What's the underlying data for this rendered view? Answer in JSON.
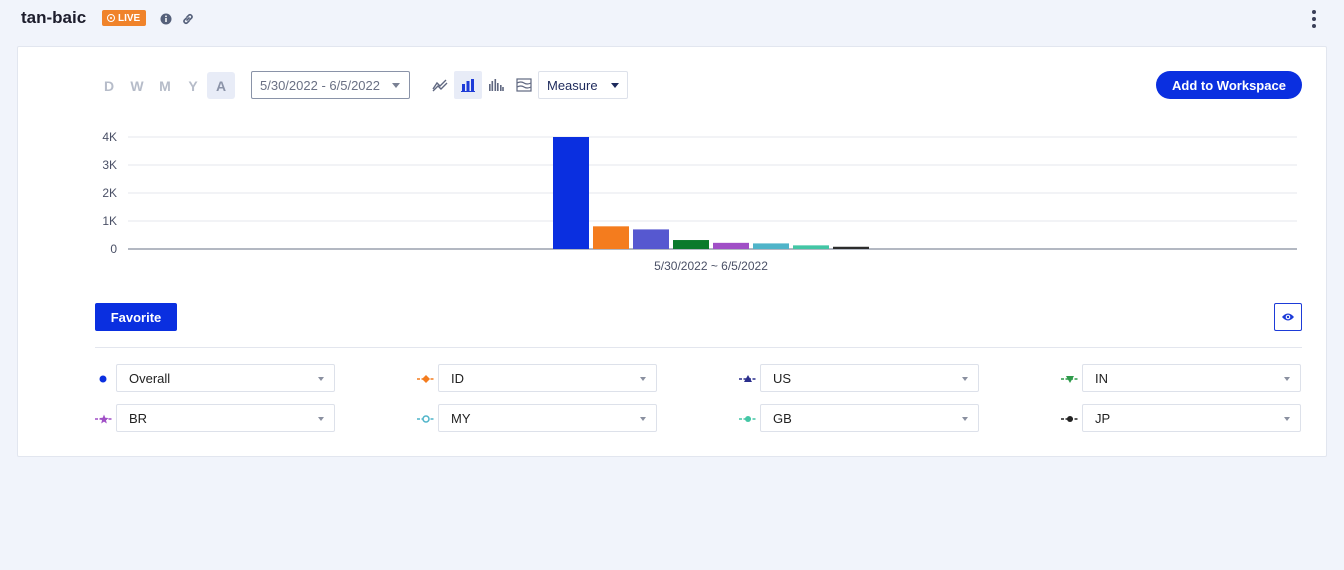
{
  "header": {
    "title": "tan-baic",
    "live_label": "LIVE"
  },
  "toolbar": {
    "periods": [
      "D",
      "W",
      "M",
      "Y",
      "A"
    ],
    "active_period": "A",
    "date_range": "5/30/2022 - 6/5/2022",
    "chart_types": [
      "trend-line-icon",
      "bar-chart-icon",
      "grouped-bar-icon",
      "stacked-area-icon"
    ],
    "active_chart_type": "bar-chart-icon",
    "measure_label": "Measure",
    "workspace_label": "Add to Workspace"
  },
  "chart_data": {
    "type": "bar",
    "categories": [
      "5/30/2022 ~ 6/5/2022"
    ],
    "series": [
      {
        "name": "Overall",
        "values": [
          4000
        ],
        "color": "#0a2fe0"
      },
      {
        "name": "ID",
        "values": [
          810
        ],
        "color": "#f47c1e"
      },
      {
        "name": "US",
        "values": [
          700
        ],
        "color": "#5658d0"
      },
      {
        "name": "IN",
        "values": [
          320
        ],
        "color": "#0a7a2b"
      },
      {
        "name": "BR",
        "values": [
          220
        ],
        "color": "#a04fc6"
      },
      {
        "name": "MY",
        "values": [
          200
        ],
        "color": "#4fb4c9"
      },
      {
        "name": "GB",
        "values": [
          130
        ],
        "color": "#43c6a5"
      },
      {
        "name": "JP",
        "values": [
          80
        ],
        "color": "#2c2c2c"
      }
    ],
    "yticks": [
      "0",
      "1K",
      "2K",
      "3K",
      "4K"
    ],
    "ylim": [
      0,
      4000
    ],
    "grid": true
  },
  "actions": {
    "favorite_label": "Favorite"
  },
  "legend": [
    {
      "name": "Overall",
      "color": "#0a2fe0",
      "marker": "dot"
    },
    {
      "name": "ID",
      "color": "#f47c1e",
      "marker": "diamond"
    },
    {
      "name": "US",
      "color": "#2a2e8c",
      "marker": "triangle"
    },
    {
      "name": "IN",
      "color": "#2e9a4a",
      "marker": "triangle-down"
    },
    {
      "name": "BR",
      "color": "#a04fc6",
      "marker": "star"
    },
    {
      "name": "MY",
      "color": "#4fb4c9",
      "marker": "circle"
    },
    {
      "name": "GB",
      "color": "#43c6a5",
      "marker": "dot"
    },
    {
      "name": "JP",
      "color": "#222222",
      "marker": "dot"
    }
  ]
}
